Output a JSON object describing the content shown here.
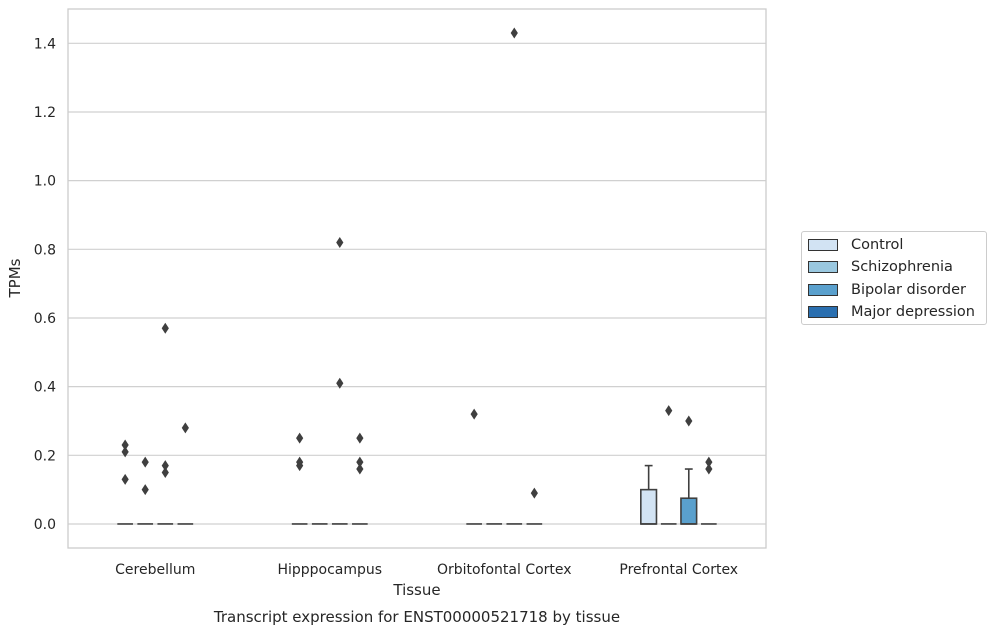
{
  "chart_data": {
    "type": "box",
    "title": "Transcript expression for ENST00000521718 by tissue",
    "xlabel": "Tissue",
    "ylabel": "TPMs",
    "ylim": [
      -0.07,
      1.5
    ],
    "yticks": [
      0.0,
      0.2,
      0.4,
      0.6,
      0.8,
      1.0,
      1.2,
      1.4
    ],
    "ytick_labels": [
      "0.0",
      "0.2",
      "0.4",
      "0.6",
      "0.8",
      "1.0",
      "1.2",
      "1.4"
    ],
    "grid": true,
    "legend_position": "right",
    "categories": [
      "Cerebellum",
      "Hipppocampus",
      "Orbitofontal Cortex",
      "Prefrontal Cortex"
    ],
    "series": [
      {
        "name": "Control",
        "color": "#d2e3f3",
        "boxes": [
          {
            "q1": 0,
            "median": 0,
            "q3": 0,
            "whisker_low": 0,
            "whisker_high": 0,
            "outliers": [
              0.13,
              0.21,
              0.23
            ]
          },
          {
            "q1": 0,
            "median": 0,
            "q3": 0,
            "whisker_low": 0,
            "whisker_high": 0,
            "outliers": [
              0.17,
              0.18,
              0.25
            ]
          },
          {
            "q1": 0,
            "median": 0,
            "q3": 0,
            "whisker_low": 0,
            "whisker_high": 0,
            "outliers": [
              0.32
            ]
          },
          {
            "q1": 0,
            "median": 0,
            "q3": 0.1,
            "whisker_low": 0,
            "whisker_high": 0.17,
            "outliers": []
          }
        ]
      },
      {
        "name": "Schizophrenia",
        "color": "#9ac8e0",
        "boxes": [
          {
            "q1": 0,
            "median": 0,
            "q3": 0,
            "whisker_low": 0,
            "whisker_high": 0,
            "outliers": [
              0.1,
              0.18
            ]
          },
          {
            "q1": 0,
            "median": 0,
            "q3": 0,
            "whisker_low": 0,
            "whisker_high": 0,
            "outliers": []
          },
          {
            "q1": 0,
            "median": 0,
            "q3": 0,
            "whisker_low": 0,
            "whisker_high": 0,
            "outliers": []
          },
          {
            "q1": 0,
            "median": 0,
            "q3": 0,
            "whisker_low": 0,
            "whisker_high": 0,
            "outliers": [
              0.33
            ]
          }
        ]
      },
      {
        "name": "Bipolar disorder",
        "color": "#5aa0cd",
        "boxes": [
          {
            "q1": 0,
            "median": 0,
            "q3": 0,
            "whisker_low": 0,
            "whisker_high": 0,
            "outliers": [
              0.15,
              0.17,
              0.57
            ]
          },
          {
            "q1": 0,
            "median": 0,
            "q3": 0,
            "whisker_low": 0,
            "whisker_high": 0,
            "outliers": [
              0.41,
              0.82
            ]
          },
          {
            "q1": 0,
            "median": 0,
            "q3": 0,
            "whisker_low": 0,
            "whisker_high": 0,
            "outliers": [
              1.43
            ]
          },
          {
            "q1": 0,
            "median": 0,
            "q3": 0.075,
            "whisker_low": 0,
            "whisker_high": 0.16,
            "outliers": [
              0.3
            ]
          }
        ]
      },
      {
        "name": "Major depression",
        "color": "#2a6fb0",
        "boxes": [
          {
            "q1": 0,
            "median": 0,
            "q3": 0,
            "whisker_low": 0,
            "whisker_high": 0,
            "outliers": [
              0.28
            ]
          },
          {
            "q1": 0,
            "median": 0,
            "q3": 0,
            "whisker_low": 0,
            "whisker_high": 0,
            "outliers": [
              0.16,
              0.18,
              0.25
            ]
          },
          {
            "q1": 0,
            "median": 0,
            "q3": 0,
            "whisker_low": 0,
            "whisker_high": 0,
            "outliers": [
              0.09
            ]
          },
          {
            "q1": 0,
            "median": 0,
            "q3": 0,
            "whisker_low": 0,
            "whisker_high": 0,
            "outliers": [
              0.16,
              0.18
            ]
          }
        ]
      }
    ]
  }
}
